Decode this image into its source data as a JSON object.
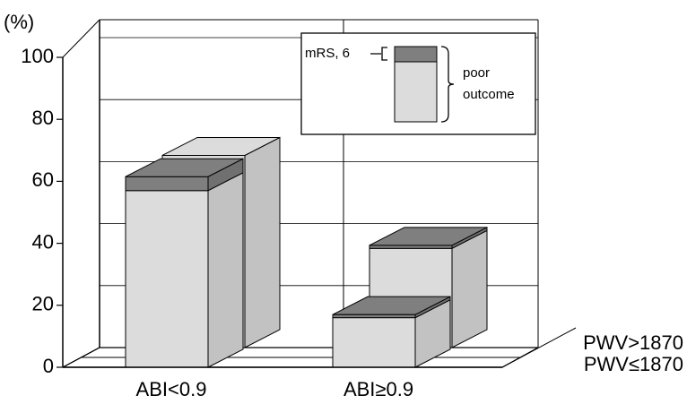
{
  "chart_data": {
    "type": "bar3d",
    "y_label": "(%)",
    "ylim": [
      0,
      100
    ],
    "yticks": [
      0,
      20,
      40,
      60,
      80,
      100
    ],
    "grid": true,
    "categories": [
      "ABI<0.9",
      "ABI≥0.9"
    ],
    "layers": [
      {
        "color": "#dcdcdc"
      },
      {
        "color": "#7f7f7f"
      }
    ],
    "series": [
      {
        "name": "PWV≤1870",
        "layers": [
          {
            "values": [
              57,
              16
            ]
          },
          {
            "values": [
              4.5,
              1
            ]
          }
        ]
      },
      {
        "name": "PWV>1870",
        "layers": [
          {
            "values": [
              62,
              32
            ]
          },
          {
            "values": [
              0,
              1
            ]
          }
        ]
      }
    ],
    "legend": {
      "top_label": "mRS, 6",
      "bracket_lines": [
        "poor",
        "outcome"
      ]
    }
  }
}
